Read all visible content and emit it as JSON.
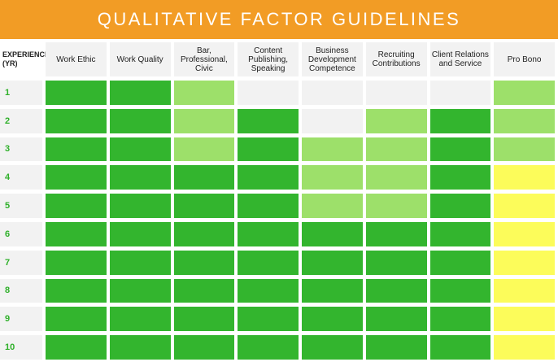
{
  "title": "QUALITATIVE FACTOR GUIDELINES",
  "columns": {
    "experience": "EXPERIENCE (YR)",
    "items": [
      "Work Ethic",
      "Work Quality",
      "Bar, Professional, Civic",
      "Content Publishing, Speaking",
      "Business Development Competence",
      "Recruiting Contributions",
      "Client Relations and Service",
      "Pro Bono"
    ]
  },
  "legend_colors": {
    "dark_green": "#33b52e",
    "light_green": "#9de06a",
    "yellow": "#fcfc5a",
    "empty": "#f2f2f2"
  },
  "rows": [
    {
      "year": "1",
      "levels": [
        "dark",
        "dark",
        "light",
        "empty",
        "empty",
        "empty",
        "empty",
        "light"
      ]
    },
    {
      "year": "2",
      "levels": [
        "dark",
        "dark",
        "light",
        "dark",
        "empty",
        "light",
        "dark",
        "light"
      ]
    },
    {
      "year": "3",
      "levels": [
        "dark",
        "dark",
        "light",
        "dark",
        "light",
        "light",
        "dark",
        "light"
      ]
    },
    {
      "year": "4",
      "levels": [
        "dark",
        "dark",
        "dark",
        "dark",
        "light",
        "light",
        "dark",
        "yellow"
      ]
    },
    {
      "year": "5",
      "levels": [
        "dark",
        "dark",
        "dark",
        "dark",
        "light",
        "light",
        "dark",
        "yellow"
      ]
    },
    {
      "year": "6",
      "levels": [
        "dark",
        "dark",
        "dark",
        "dark",
        "dark",
        "dark",
        "dark",
        "yellow"
      ]
    },
    {
      "year": "7",
      "levels": [
        "dark",
        "dark",
        "dark",
        "dark",
        "dark",
        "dark",
        "dark",
        "yellow"
      ]
    },
    {
      "year": "8",
      "levels": [
        "dark",
        "dark",
        "dark",
        "dark",
        "dark",
        "dark",
        "dark",
        "yellow"
      ]
    },
    {
      "year": "9",
      "levels": [
        "dark",
        "dark",
        "dark",
        "dark",
        "dark",
        "dark",
        "dark",
        "yellow"
      ]
    },
    {
      "year": "10",
      "levels": [
        "dark",
        "dark",
        "dark",
        "dark",
        "dark",
        "dark",
        "dark",
        "yellow"
      ]
    }
  ]
}
